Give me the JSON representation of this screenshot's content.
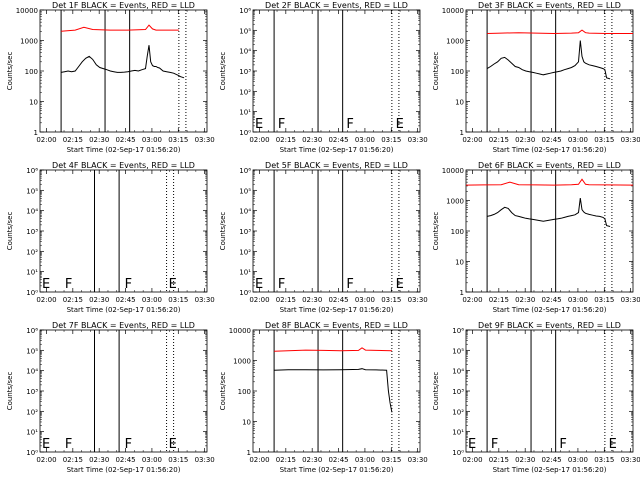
{
  "colors": {
    "events": "#000000",
    "lld": "#ff0000",
    "axis": "#000000"
  },
  "xticks": [
    "02:00",
    "02:15",
    "02:30",
    "02:45",
    "03:00",
    "03:15",
    "03:30"
  ],
  "xlabel": "Start Time (02-Sep-17 01:56:20)",
  "ylabel": "Counts/sec",
  "chart_data": [
    {
      "type": "line",
      "title": "Det 1F BLACK = Events, RED = LLD",
      "yscale": "log",
      "ylim": [
        1,
        10000
      ],
      "yticks": [
        "1",
        "10",
        "100",
        "1000",
        "10000"
      ],
      "x_range_min": [
        0,
        95
      ],
      "vlines_solid_min": [
        12,
        37,
        51
      ],
      "vlines_dotted_min": [
        79,
        83
      ],
      "markers": [],
      "series": [
        {
          "color": "lld",
          "x": [
            12,
            20,
            25,
            30,
            40,
            50,
            60,
            62,
            64,
            66,
            70,
            79
          ],
          "y": [
            2000,
            2200,
            2700,
            2300,
            2200,
            2200,
            2300,
            3200,
            2400,
            2200,
            2200,
            2200
          ]
        },
        {
          "color": "events",
          "x": [
            12,
            14,
            16,
            18,
            20,
            22,
            24,
            26,
            28,
            30,
            32,
            34,
            36,
            38,
            40,
            42,
            44,
            46,
            48,
            50,
            52,
            54,
            56,
            58,
            60,
            61,
            62,
            63,
            64,
            65,
            66,
            67,
            68,
            70,
            72,
            74,
            76,
            78,
            79,
            80,
            82
          ],
          "y": [
            90,
            95,
            100,
            95,
            100,
            140,
            200,
            260,
            300,
            240,
            160,
            130,
            120,
            110,
            100,
            95,
            90,
            90,
            92,
            95,
            100,
            105,
            100,
            110,
            120,
            300,
            700,
            200,
            150,
            140,
            140,
            130,
            125,
            100,
            95,
            90,
            85,
            75,
            70,
            65,
            60
          ]
        }
      ]
    },
    {
      "type": "line",
      "title": "Det 2F BLACK = Events, RED = LLD",
      "yscale": "log",
      "ylim": [
        1,
        1000000
      ],
      "yticks": [
        "10⁰",
        "10¹",
        "10²",
        "10³",
        "10⁴",
        "10⁵",
        "10⁶"
      ],
      "x_range_min": [
        0,
        95
      ],
      "vlines_solid_min": [
        12,
        37,
        51
      ],
      "vlines_dotted_min": [
        79,
        83
      ],
      "markers": [
        {
          "label": "E",
          "x": 0
        },
        {
          "label": "F",
          "x": 13
        },
        {
          "label": "F",
          "x": 52
        },
        {
          "label": "E",
          "x": 80
        }
      ],
      "series": []
    },
    {
      "type": "line",
      "title": "Det 3F BLACK = Events, RED = LLD",
      "yscale": "log",
      "ylim": [
        1,
        10000
      ],
      "yticks": [
        "1",
        "10",
        "100",
        "1000",
        "10000"
      ],
      "x_range_min": [
        0,
        95
      ],
      "vlines_solid_min": [
        12,
        37,
        51
      ],
      "vlines_dotted_min": [
        79,
        83
      ],
      "markers": [],
      "series": [
        {
          "color": "lld",
          "x": [
            12,
            20,
            30,
            40,
            50,
            60,
            64,
            66,
            68,
            70,
            80,
            95
          ],
          "y": [
            1700,
            1750,
            1800,
            1750,
            1700,
            1750,
            1800,
            2200,
            1800,
            1750,
            1700,
            1700
          ]
        },
        {
          "color": "events",
          "x": [
            12,
            14,
            16,
            18,
            20,
            22,
            24,
            26,
            28,
            30,
            32,
            34,
            36,
            38,
            40,
            42,
            44,
            46,
            48,
            50,
            52,
            54,
            56,
            58,
            60,
            62,
            64,
            65,
            66,
            67,
            68,
            70,
            72,
            74,
            76,
            78,
            79,
            80,
            82
          ],
          "y": [
            120,
            140,
            170,
            200,
            260,
            280,
            230,
            180,
            140,
            130,
            110,
            100,
            95,
            90,
            85,
            80,
            75,
            80,
            85,
            90,
            95,
            100,
            110,
            120,
            130,
            150,
            200,
            1000,
            300,
            200,
            180,
            160,
            150,
            140,
            130,
            120,
            110,
            60,
            55
          ]
        }
      ]
    },
    {
      "type": "line",
      "title": "Det 4F BLACK = Events, RED = LLD",
      "yscale": "log",
      "ylim": [
        1,
        1000000
      ],
      "yticks": [
        "10⁰",
        "10¹",
        "10²",
        "10³",
        "10⁴",
        "10⁵",
        "10⁶"
      ],
      "x_range_min": [
        0,
        95
      ],
      "vlines_solid_min": [
        31,
        45
      ],
      "vlines_dotted_min": [
        72,
        76
      ],
      "markers": [
        {
          "label": "E",
          "x": 0
        },
        {
          "label": "F",
          "x": 13
        },
        {
          "label": "F",
          "x": 47
        },
        {
          "label": "E",
          "x": 72
        }
      ],
      "series": []
    },
    {
      "type": "line",
      "title": "Det 5F BLACK = Events, RED = LLD",
      "yscale": "log",
      "ylim": [
        1,
        1000000
      ],
      "yticks": [
        "10⁰",
        "10¹",
        "10²",
        "10³",
        "10⁴",
        "10⁵",
        "10⁶"
      ],
      "x_range_min": [
        0,
        95
      ],
      "vlines_solid_min": [
        12,
        37,
        51
      ],
      "vlines_dotted_min": [
        79,
        83
      ],
      "markers": [
        {
          "label": "E",
          "x": 0
        },
        {
          "label": "F",
          "x": 13
        },
        {
          "label": "F",
          "x": 52
        },
        {
          "label": "E",
          "x": 80
        }
      ],
      "series": []
    },
    {
      "type": "line",
      "title": "Det 6F BLACK = Events, RED = LLD",
      "yscale": "log",
      "ylim": [
        1,
        10000
      ],
      "yticks": [
        "1",
        "10",
        "100",
        "1000",
        "10000"
      ],
      "x_range_min": [
        0,
        95
      ],
      "vlines_solid_min": [
        12,
        37,
        51
      ],
      "vlines_dotted_min": [
        79,
        83
      ],
      "markers": [],
      "series": [
        {
          "color": "lld",
          "x": [
            0,
            10,
            20,
            25,
            30,
            40,
            50,
            60,
            64,
            66,
            68,
            70,
            80,
            95
          ],
          "y": [
            3200,
            3250,
            3300,
            4000,
            3300,
            3250,
            3200,
            3300,
            3400,
            5000,
            3400,
            3300,
            3250,
            3200
          ]
        },
        {
          "color": "events",
          "x": [
            12,
            14,
            16,
            18,
            20,
            22,
            24,
            26,
            28,
            30,
            32,
            34,
            36,
            38,
            40,
            42,
            44,
            46,
            48,
            50,
            52,
            54,
            56,
            58,
            60,
            62,
            64,
            65,
            66,
            67,
            68,
            70,
            72,
            74,
            76,
            78,
            79,
            80,
            82
          ],
          "y": [
            300,
            320,
            350,
            400,
            500,
            600,
            550,
            400,
            320,
            300,
            280,
            260,
            250,
            240,
            230,
            220,
            210,
            220,
            230,
            240,
            250,
            260,
            280,
            300,
            320,
            340,
            400,
            1200,
            500,
            420,
            380,
            350,
            330,
            310,
            300,
            280,
            250,
            150,
            140
          ]
        }
      ]
    },
    {
      "type": "line",
      "title": "Det 7F BLACK = Events, RED = LLD",
      "yscale": "log",
      "ylim": [
        1,
        1000000
      ],
      "yticks": [
        "10⁰",
        "10¹",
        "10²",
        "10³",
        "10⁴",
        "10⁵",
        "10⁶"
      ],
      "x_range_min": [
        0,
        95
      ],
      "vlines_solid_min": [
        31,
        45
      ],
      "vlines_dotted_min": [
        72,
        76
      ],
      "markers": [
        {
          "label": "E",
          "x": 0
        },
        {
          "label": "F",
          "x": 13
        },
        {
          "label": "F",
          "x": 47
        },
        {
          "label": "E",
          "x": 72
        }
      ],
      "series": []
    },
    {
      "type": "line",
      "title": "Det 8F BLACK = Events, RED = LLD",
      "yscale": "log",
      "ylim": [
        1,
        10000
      ],
      "yticks": [
        "1",
        "10",
        "100",
        "1000",
        "10000"
      ],
      "x_range_min": [
        0,
        95
      ],
      "vlines_solid_min": [
        12,
        37,
        51
      ],
      "vlines_dotted_min": [
        79,
        83
      ],
      "markers": [],
      "series": [
        {
          "color": "lld",
          "x": [
            12,
            20,
            30,
            40,
            50,
            60,
            62,
            64,
            70,
            79
          ],
          "y": [
            2000,
            2100,
            2200,
            2150,
            2100,
            2150,
            2600,
            2200,
            2150,
            2100
          ]
        },
        {
          "color": "events",
          "x": [
            12,
            20,
            30,
            40,
            50,
            60,
            62,
            64,
            70,
            76,
            77,
            78,
            79
          ],
          "y": [
            480,
            500,
            500,
            490,
            500,
            510,
            540,
            500,
            490,
            480,
            100,
            40,
            20
          ]
        }
      ]
    },
    {
      "type": "line",
      "title": "Det 9F BLACK = Events, RED = LLD",
      "yscale": "log",
      "ylim": [
        1,
        1000000
      ],
      "yticks": [
        "10⁰",
        "10¹",
        "10²",
        "10³",
        "10⁴",
        "10⁵",
        "10⁶"
      ],
      "x_range_min": [
        0,
        95
      ],
      "vlines_solid_min": [
        12,
        37,
        51
      ],
      "vlines_dotted_min": [
        79,
        83
      ],
      "markers": [
        {
          "label": "E",
          "x": 0
        },
        {
          "label": "F",
          "x": 13
        },
        {
          "label": "F",
          "x": 52
        },
        {
          "label": "E",
          "x": 80
        }
      ],
      "series": []
    }
  ]
}
